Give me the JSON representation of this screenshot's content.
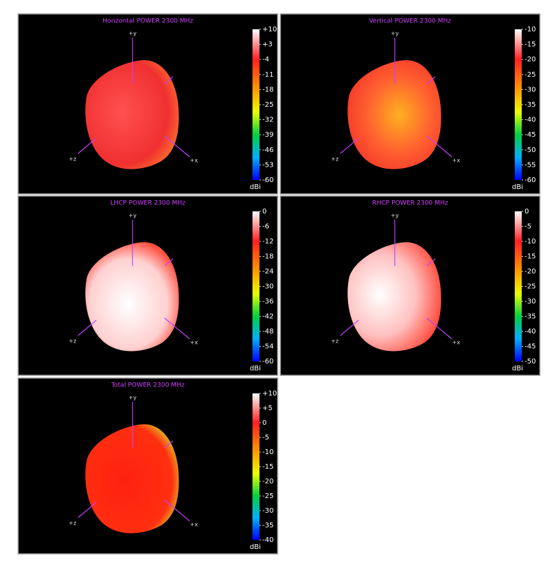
{
  "chart_data": [
    {
      "type": "surface3d",
      "title": "Horizontal POWER 2300  MHz",
      "colorbar_label": "dBi",
      "colorbar_lim": [
        -60,
        10
      ],
      "colorbar_ticks": [
        {
          "value": 10,
          "label": "+10"
        },
        {
          "value": 3,
          "label": "+3"
        },
        -4,
        -11,
        -18,
        -25,
        -32,
        -39,
        -46,
        -53,
        -60
      ],
      "axis_labels": [
        "+y",
        "+x",
        "+z"
      ]
    },
    {
      "type": "surface3d",
      "title": "Vertical POWER 2300  MHz",
      "colorbar_label": "dBi",
      "colorbar_lim": [
        -60,
        -10
      ],
      "colorbar_ticks": [
        -10,
        -15,
        -20,
        -25,
        -30,
        -35,
        -40,
        -45,
        -50,
        -55,
        -60
      ],
      "axis_labels": [
        "+y",
        "+x",
        "+z"
      ]
    },
    {
      "type": "surface3d",
      "title": "LHCP POWER 2300  MHz",
      "colorbar_label": "dBi",
      "colorbar_lim": [
        -60,
        0
      ],
      "colorbar_ticks": [
        0,
        -6,
        -12,
        -18,
        -24,
        -30,
        -36,
        -42,
        -48,
        -54,
        -60
      ],
      "axis_labels": [
        "+y",
        "+x",
        "+z"
      ]
    },
    {
      "type": "surface3d",
      "title": "RHCP POWER 2300  MHz",
      "colorbar_label": "dBi",
      "colorbar_lim": [
        -50,
        0
      ],
      "colorbar_ticks": [
        0,
        -5,
        -10,
        -15,
        -20,
        -25,
        -30,
        -35,
        -40,
        -45,
        -50
      ],
      "axis_labels": [
        "+y",
        "+x",
        "+z"
      ]
    },
    {
      "type": "surface3d",
      "title": "Total POWER 2300  MHz",
      "colorbar_label": "dBi",
      "colorbar_lim": [
        -40,
        10
      ],
      "colorbar_ticks": [
        {
          "value": 10,
          "label": "+10"
        },
        {
          "value": 5,
          "label": "+5"
        },
        0,
        -5,
        -10,
        -15,
        -20,
        -25,
        -30,
        -35,
        -40
      ],
      "axis_labels": [
        "+y",
        "+x",
        "+z"
      ]
    }
  ]
}
